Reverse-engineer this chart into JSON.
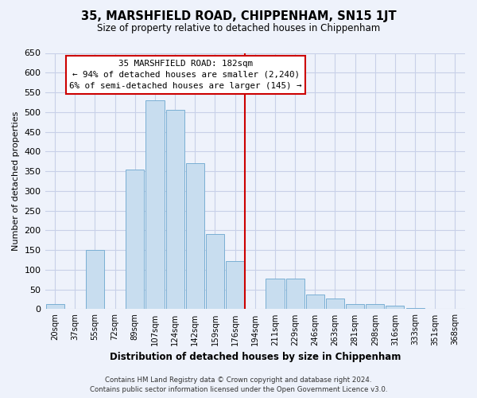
{
  "title": "35, MARSHFIELD ROAD, CHIPPENHAM, SN15 1JT",
  "subtitle": "Size of property relative to detached houses in Chippenham",
  "xlabel": "Distribution of detached houses by size in Chippenham",
  "ylabel": "Number of detached properties",
  "bar_labels": [
    "20sqm",
    "37sqm",
    "55sqm",
    "72sqm",
    "89sqm",
    "107sqm",
    "124sqm",
    "142sqm",
    "159sqm",
    "176sqm",
    "194sqm",
    "211sqm",
    "229sqm",
    "246sqm",
    "263sqm",
    "281sqm",
    "298sqm",
    "316sqm",
    "333sqm",
    "351sqm",
    "368sqm"
  ],
  "bar_values": [
    12,
    0,
    150,
    0,
    355,
    530,
    505,
    370,
    190,
    122,
    0,
    78,
    78,
    38,
    27,
    13,
    13,
    8,
    2,
    1,
    1
  ],
  "bar_color": "#c8ddef",
  "bar_edge_color": "#7aafd4",
  "vline_x_index": 9.5,
  "vline_color": "#cc0000",
  "ylim": [
    0,
    650
  ],
  "yticks": [
    0,
    50,
    100,
    150,
    200,
    250,
    300,
    350,
    400,
    450,
    500,
    550,
    600,
    650
  ],
  "annotation_title": "35 MARSHFIELD ROAD: 182sqm",
  "annotation_line1": "← 94% of detached houses are smaller (2,240)",
  "annotation_line2": "6% of semi-detached houses are larger (145) →",
  "annotation_box_facecolor": "#ffffff",
  "annotation_box_edgecolor": "#cc0000",
  "footer1": "Contains HM Land Registry data © Crown copyright and database right 2024.",
  "footer2": "Contains public sector information licensed under the Open Government Licence v3.0.",
  "bg_color": "#eef2fb",
  "grid_color": "#c8d0e8"
}
